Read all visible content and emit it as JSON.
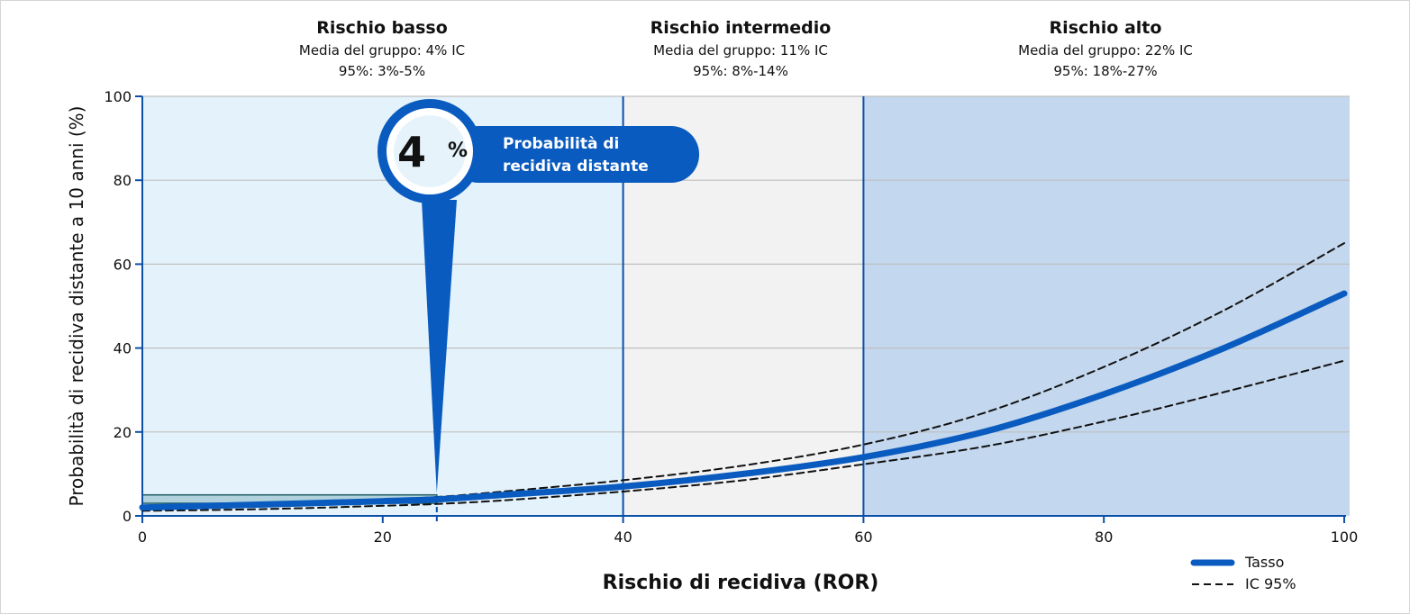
{
  "chart_data": {
    "type": "line",
    "xlabel": "Rischio di recidiva (ROR)",
    "ylabel": "Probabilità di recidiva distante a 10 anni (%)",
    "xlim": [
      0,
      100
    ],
    "ylim": [
      0,
      100
    ],
    "x_ticks": [
      "0",
      "20",
      "40",
      "60",
      "80",
      "100"
    ],
    "y_ticks": [
      "0",
      "20",
      "40",
      "60",
      "80",
      "100"
    ],
    "grid": "horizontal",
    "legend_position": "bottom-right",
    "zones": [
      {
        "title": "Rischio basso",
        "line1": "Media del gruppo: 4% IC",
        "line2": "95%: 3%-5%",
        "x_start": 0,
        "x_end": 40,
        "color": "#e4f3fb"
      },
      {
        "title": "Rischio intermedio",
        "line1": "Media del gruppo: 11% IC",
        "line2": "95%: 8%-14%",
        "x_start": 40,
        "x_end": 60,
        "color": "#f2f2f2"
      },
      {
        "title": "Rischio alto",
        "line1": "Media del gruppo: 22% IC",
        "line2": "95%: 18%-27%",
        "x_start": 60,
        "x_end": 100,
        "color": "#c3d7ee"
      }
    ],
    "series": [
      {
        "name": "Tasso",
        "style": "solid",
        "color": "#0a5bbf",
        "x": [
          0,
          10,
          20,
          25,
          30,
          40,
          50,
          60,
          70,
          80,
          90,
          100
        ],
        "y": [
          2,
          2.7,
          3.5,
          4,
          5,
          7,
          10,
          14,
          20,
          29,
          40,
          53
        ]
      },
      {
        "name": "IC 95%",
        "style": "dashed",
        "color": "#111111",
        "x": [
          0,
          10,
          20,
          25,
          30,
          40,
          50,
          60,
          70,
          80,
          90,
          100
        ],
        "y": [
          1.5,
          2.3,
          3.8,
          4.6,
          5.8,
          8.5,
          12,
          17,
          24.5,
          35.5,
          49,
          65
        ]
      },
      {
        "name": "IC 95%",
        "style": "dashed",
        "color": "#111111",
        "x": [
          0,
          10,
          20,
          25,
          30,
          40,
          50,
          60,
          70,
          80,
          90,
          100
        ],
        "y": [
          1.2,
          1.6,
          2.4,
          2.9,
          3.7,
          5.8,
          8.5,
          12.3,
          16.5,
          22.5,
          29.5,
          37
        ]
      }
    ],
    "highlight": {
      "x": 24.5,
      "y_low": 3,
      "y_high": 5,
      "value": "4",
      "unit": "%",
      "label_line1": "Probabilità di",
      "label_line2": "recidiva distante"
    },
    "legend": [
      {
        "label": "Tasso",
        "style": "solid"
      },
      {
        "label": "IC 95%",
        "style": "dashed"
      }
    ]
  }
}
